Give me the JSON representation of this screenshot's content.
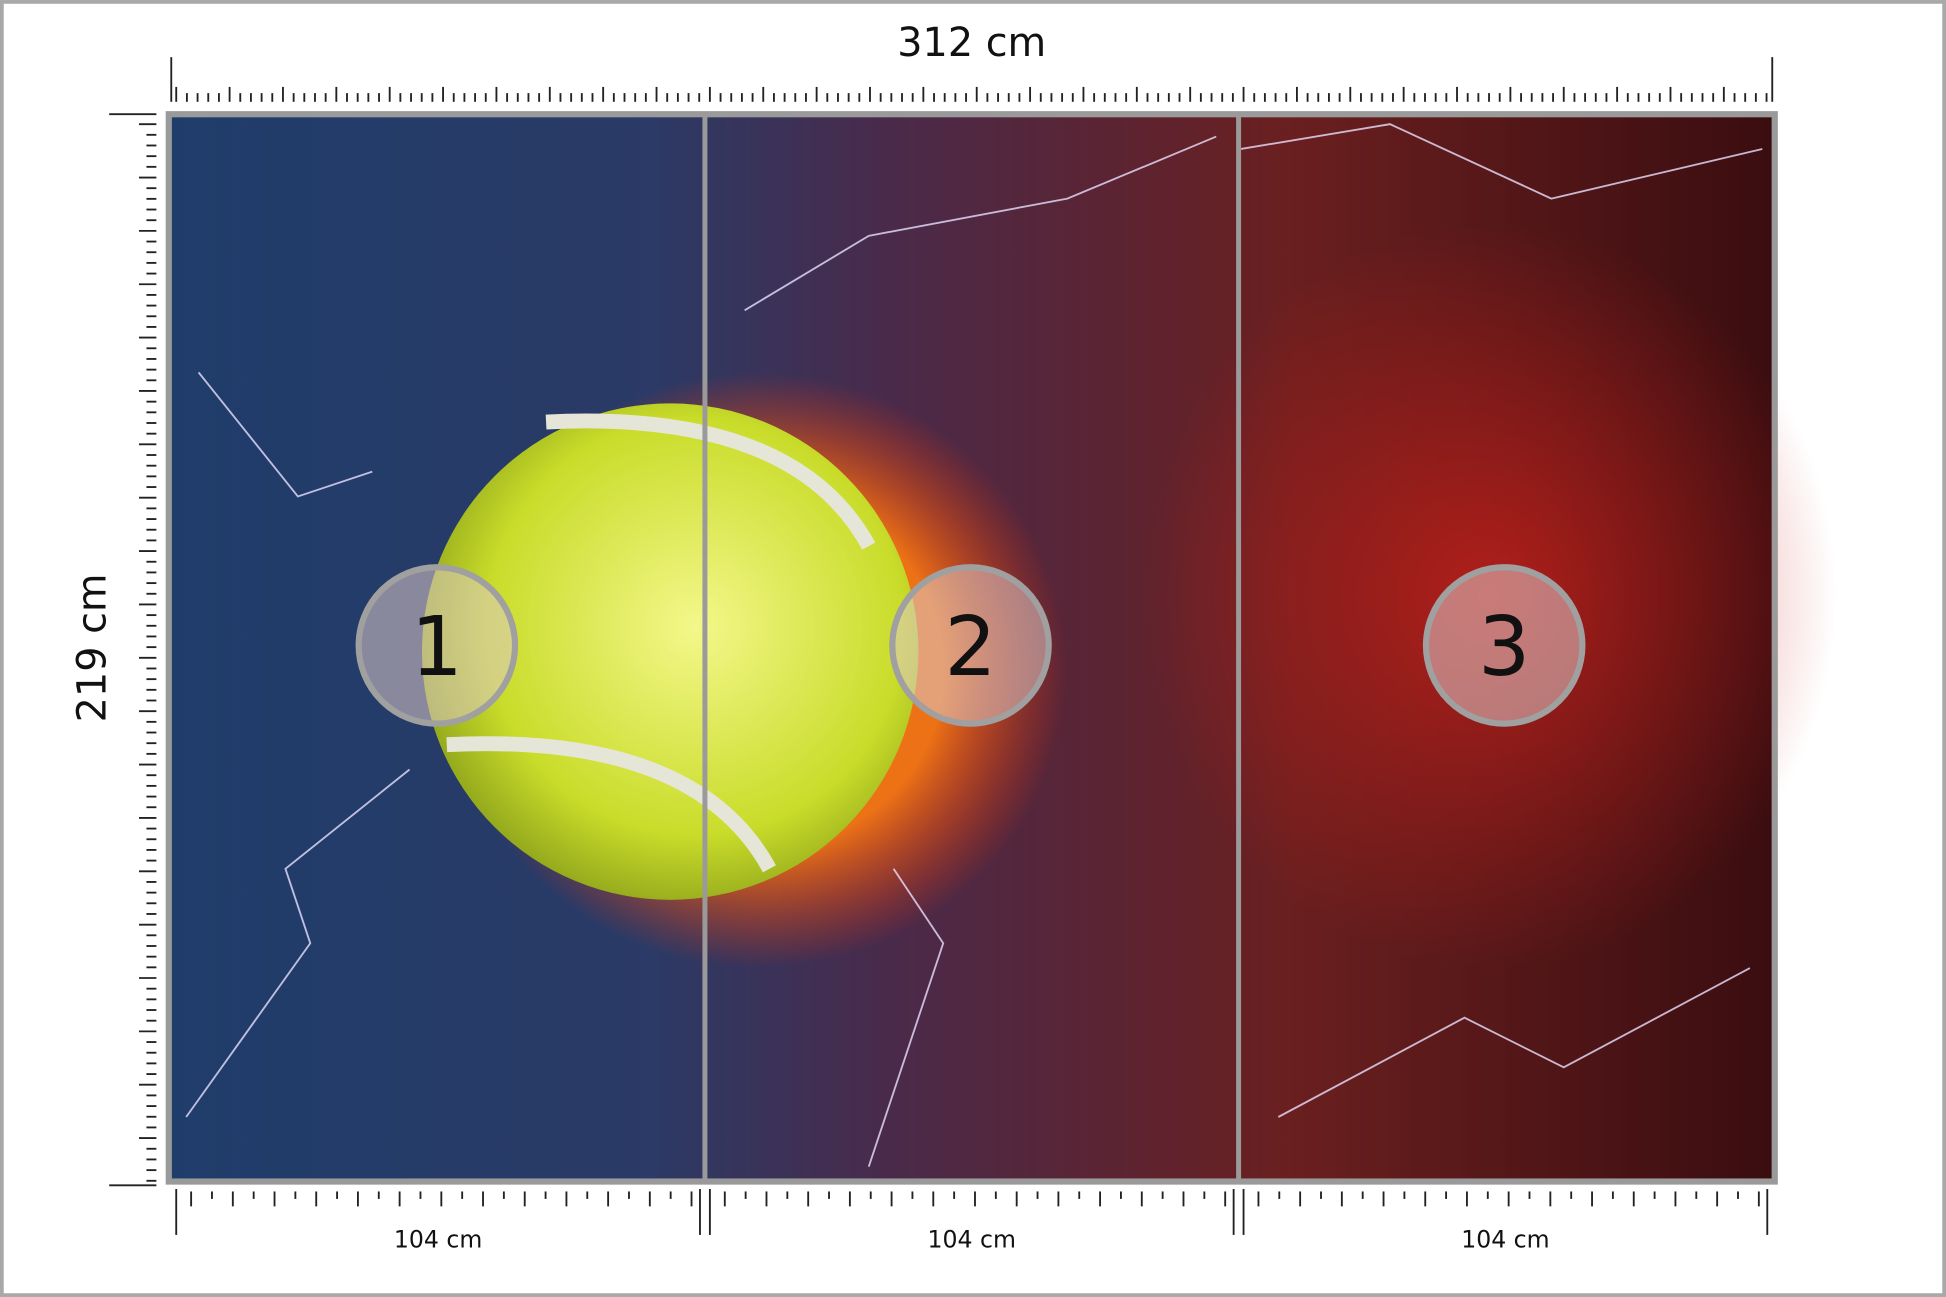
{
  "width_label": "312 cm",
  "height_label": "219 cm",
  "panels": [
    {
      "number": "1",
      "width": "104 cm"
    },
    {
      "number": "2",
      "width": "104 cm"
    },
    {
      "number": "3",
      "width": "104 cm"
    }
  ]
}
